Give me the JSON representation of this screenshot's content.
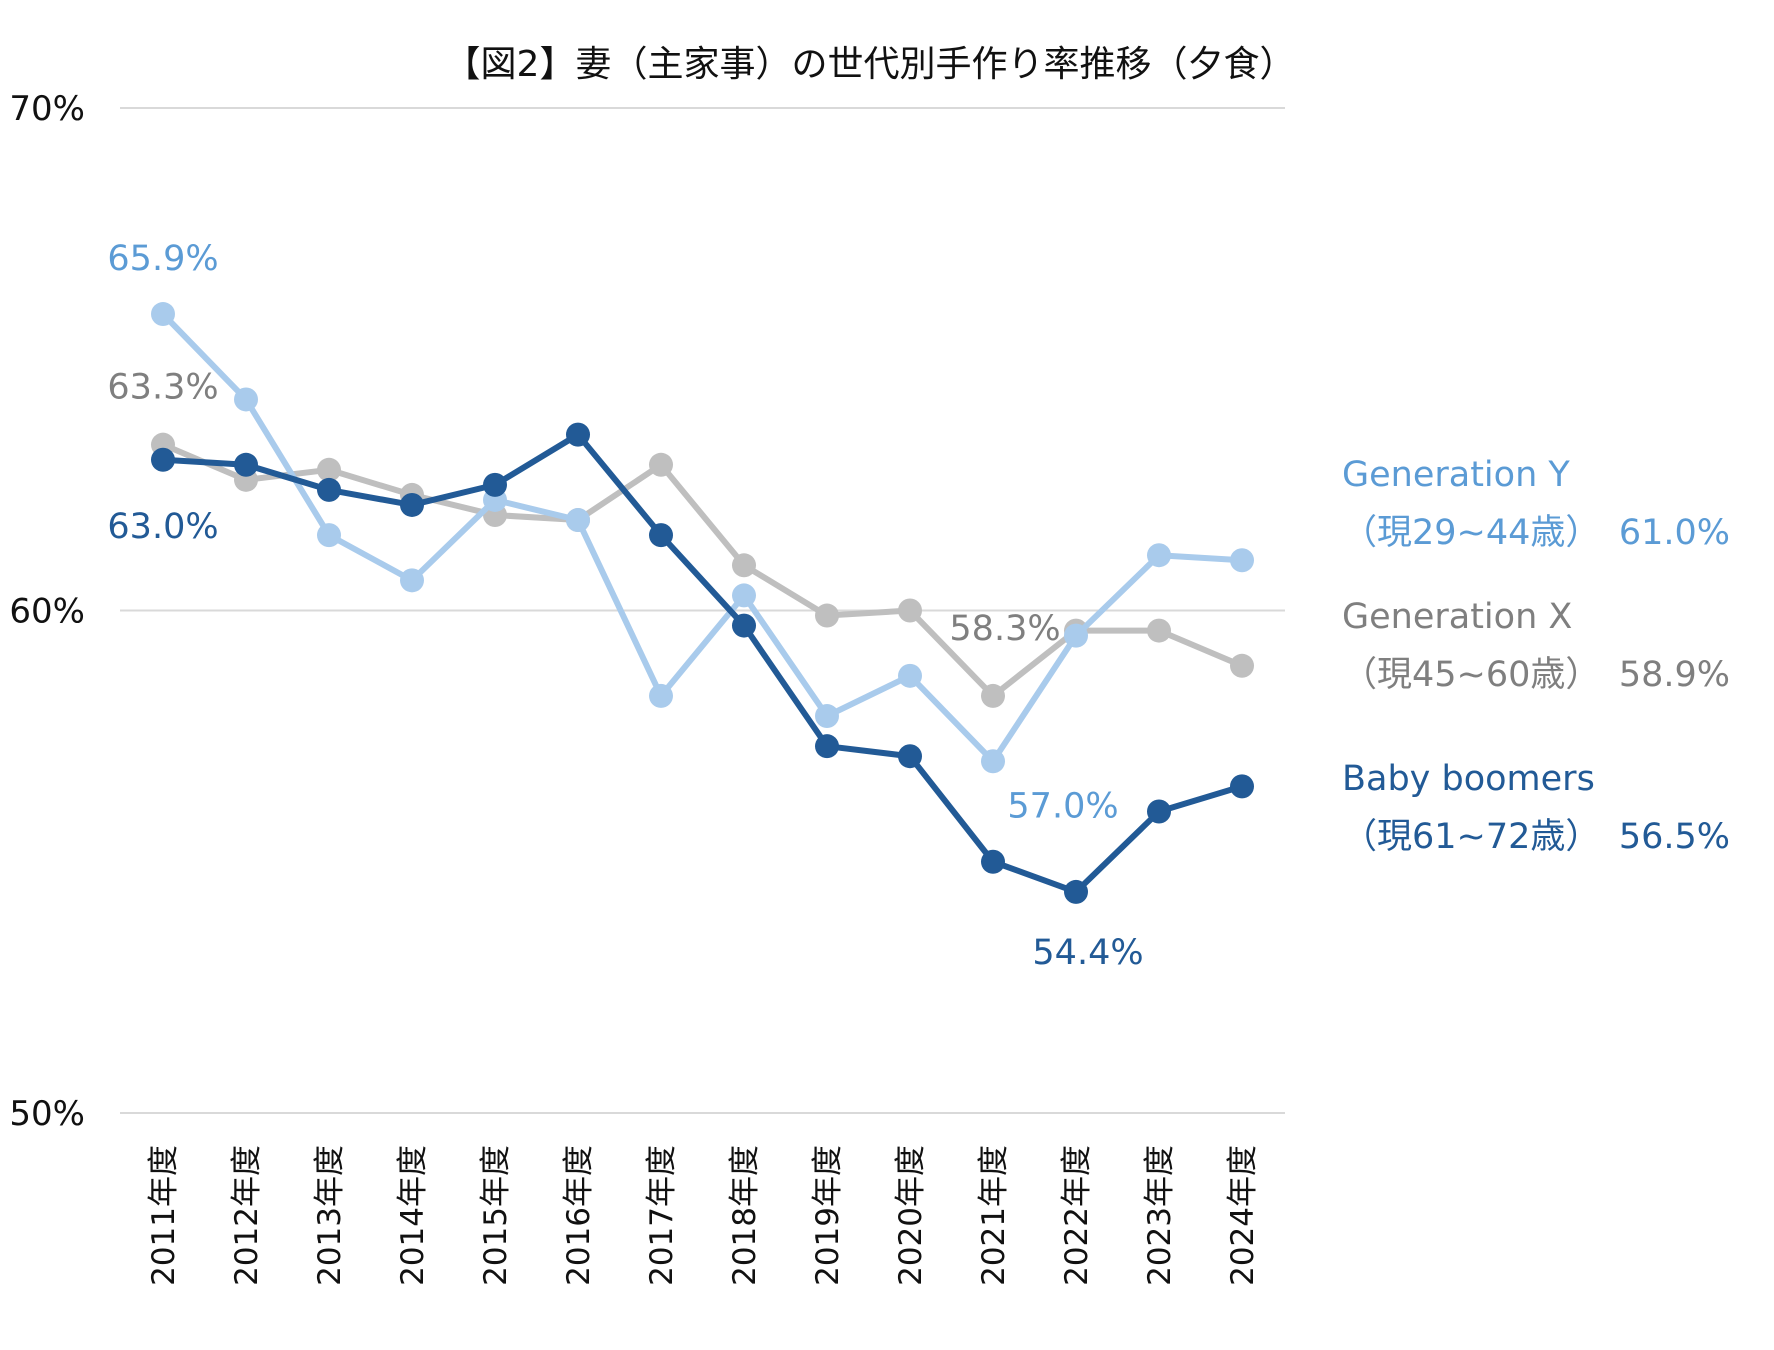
{
  "chart_data": {
    "type": "line",
    "title": "【図2】妻（主家事）の世代別手作り率推移（夕食）",
    "xlabel": "",
    "ylabel": "",
    "ylim": [
      50,
      70
    ],
    "yticks": [
      {
        "value": 70,
        "label": "70%"
      },
      {
        "value": 60,
        "label": "60%"
      },
      {
        "value": 50,
        "label": "50%"
      }
    ],
    "grid": true,
    "legend_position": "right",
    "categories": [
      "2011年度",
      "2012年度",
      "2013年度",
      "2014年度",
      "2015年度",
      "2016年度",
      "2017年度",
      "2018年度",
      "2019年度",
      "2020年度",
      "2021年度",
      "2022年度",
      "2023年度",
      "2024年度"
    ],
    "series": [
      {
        "key": "genx",
        "name": "Generation X",
        "sub": "（現45~60歳）",
        "last_label": "58.9%",
        "color": "#bfbfbf",
        "label_color": "#7f7f7f",
        "values": [
          63.3,
          62.6,
          62.8,
          62.3,
          61.9,
          61.8,
          62.9,
          60.9,
          59.9,
          60.0,
          58.3,
          59.6,
          59.6,
          58.9
        ]
      },
      {
        "key": "geny",
        "name": "Generation Y",
        "sub": "（現29~44歳）",
        "last_label": "61.0%",
        "color": "#a9cbec",
        "label_color": "#5b9bd5",
        "values": [
          65.9,
          64.2,
          61.5,
          60.6,
          62.2,
          61.8,
          58.3,
          60.3,
          57.9,
          58.7,
          57.0,
          59.5,
          61.1,
          61.0
        ]
      },
      {
        "key": "boomers",
        "name": "Baby boomers",
        "sub": "（現61~72歳）",
        "last_label": "56.5%",
        "color": "#225a96",
        "label_color": "#225a96",
        "values": [
          63.0,
          62.9,
          62.4,
          62.1,
          62.5,
          63.5,
          61.5,
          59.7,
          57.3,
          57.1,
          55.0,
          54.4,
          56.0,
          56.5
        ]
      }
    ],
    "annotations": [
      {
        "series": "geny",
        "point": 0,
        "text": "65.9%"
      },
      {
        "series": "genx",
        "point": 0,
        "text": "63.3%"
      },
      {
        "series": "boomers",
        "point": 0,
        "text": "63.0%"
      },
      {
        "series": "genx",
        "point": 10,
        "text": "58.3%"
      },
      {
        "series": "geny",
        "point": 10,
        "text": "57.0%"
      },
      {
        "series": "boomers",
        "point": 11,
        "text": "54.4%"
      }
    ]
  }
}
